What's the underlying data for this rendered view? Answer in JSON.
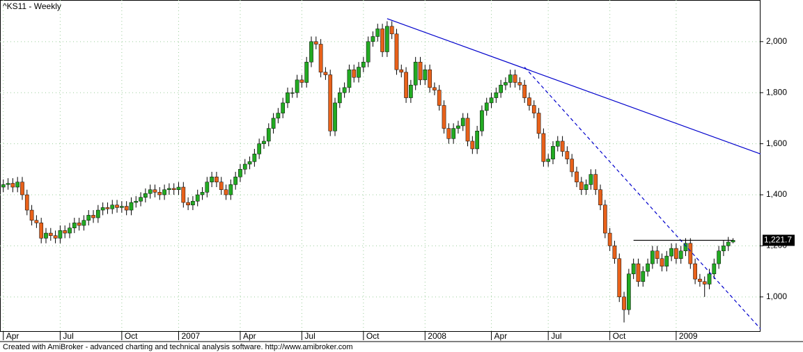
{
  "chart_data": {
    "type": "candlestick",
    "title": "^KS11 - Weekly",
    "footer": "Created with AmiBroker - advanced charting and technical analysis software. http://www.amibroker.com",
    "up_color": "#22aa22",
    "down_color": "#e8611a",
    "grid": true,
    "xlim": [
      -0.7,
      159.8
    ],
    "xticks": [
      {
        "value": 0,
        "label": "Apr"
      },
      {
        "value": 12,
        "label": "Jul"
      },
      {
        "value": 25,
        "label": "Oct"
      },
      {
        "value": 37,
        "label": "2007"
      },
      {
        "value": 50,
        "label": "Apr"
      },
      {
        "value": 63,
        "label": "Jul"
      },
      {
        "value": 76,
        "label": "Oct"
      },
      {
        "value": 89,
        "label": "2008"
      },
      {
        "value": 103,
        "label": "Apr"
      },
      {
        "value": 115,
        "label": "Jul"
      },
      {
        "value": 128,
        "label": "Oct"
      },
      {
        "value": 142,
        "label": "2009"
      }
    ],
    "ylim": [
      866,
      2163
    ],
    "yticks": [
      {
        "value": 1000,
        "label": "1,000"
      },
      {
        "value": 1200,
        "label": "1,200"
      },
      {
        "value": 1400,
        "label": "1,400"
      },
      {
        "value": 1600,
        "label": "1,600"
      },
      {
        "value": 1800,
        "label": "1,800"
      },
      {
        "value": 2000,
        "label": "2,000"
      }
    ],
    "last_value": {
      "value": 1221.7,
      "label": "1,221.7"
    },
    "trendlines": [
      {
        "x": [
          81,
          159.8
        ],
        "y": [
          2090,
          1560
        ],
        "color": "#0000cc",
        "dashed": false
      },
      {
        "x": [
          110,
          159.8
        ],
        "y": [
          1900,
          875
        ],
        "color": "#0000cc",
        "dashed": true
      },
      {
        "x": [
          133,
          154
        ],
        "y": [
          1221.7,
          1221.7
        ],
        "color": "#000000",
        "dashed": false
      }
    ],
    "open": [
      1430,
      1440,
      1445,
      1430,
      1450,
      1400,
      1340,
      1300,
      1290,
      1230,
      1250,
      1240,
      1230,
      1260,
      1250,
      1270,
      1290,
      1280,
      1300,
      1320,
      1310,
      1340,
      1350,
      1345,
      1360,
      1350,
      1355,
      1340,
      1370,
      1375,
      1390,
      1405,
      1420,
      1410,
      1400,
      1420,
      1425,
      1420,
      1430,
      1370,
      1360,
      1375,
      1400,
      1410,
      1450,
      1470,
      1450,
      1420,
      1400,
      1440,
      1470,
      1500,
      1520,
      1530,
      1560,
      1600,
      1610,
      1660,
      1700,
      1720,
      1760,
      1800,
      1800,
      1850,
      1840,
      1920,
      2000,
      1990,
      1880,
      1870,
      1650,
      1760,
      1800,
      1820,
      1890,
      1860,
      1900,
      1920,
      2000,
      2020,
      2050,
      1960,
      2060,
      2030,
      1890,
      1880,
      1780,
      1830,
      1920,
      1850,
      1890,
      1820,
      1810,
      1750,
      1660,
      1620,
      1660,
      1670,
      1700,
      1610,
      1580,
      1650,
      1730,
      1760,
      1780,
      1800,
      1830,
      1840,
      1870,
      1840,
      1830,
      1780,
      1750,
      1720,
      1640,
      1530,
      1540,
      1590,
      1610,
      1570,
      1540,
      1490,
      1450,
      1420,
      1440,
      1480,
      1420,
      1360,
      1250,
      1200,
      1150,
      1000,
      950,
      1090,
      1130,
      1060,
      1100,
      1130,
      1180,
      1150,
      1120,
      1160,
      1190,
      1150,
      1180,
      1210,
      1130,
      1070,
      1060,
      1050,
      1090,
      1130,
      1180,
      1200,
      1215
    ],
    "high": [
      1460,
      1465,
      1465,
      1470,
      1470,
      1420,
      1360,
      1320,
      1310,
      1270,
      1270,
      1260,
      1280,
      1280,
      1290,
      1310,
      1310,
      1320,
      1340,
      1340,
      1360,
      1370,
      1370,
      1380,
      1380,
      1375,
      1375,
      1390,
      1395,
      1410,
      1425,
      1440,
      1440,
      1430,
      1440,
      1445,
      1445,
      1450,
      1450,
      1390,
      1395,
      1420,
      1430,
      1470,
      1490,
      1490,
      1470,
      1440,
      1460,
      1490,
      1520,
      1540,
      1550,
      1580,
      1620,
      1630,
      1680,
      1720,
      1740,
      1780,
      1820,
      1820,
      1870,
      1870,
      1940,
      2020,
      2020,
      2010,
      1900,
      1890,
      1780,
      1820,
      1840,
      1910,
      1910,
      1920,
      1940,
      2020,
      2040,
      2070,
      2070,
      2080,
      2080,
      2050,
      1910,
      1900,
      1850,
      1940,
      1940,
      1910,
      1910,
      1840,
      1830,
      1770,
      1680,
      1680,
      1690,
      1720,
      1720,
      1630,
      1670,
      1750,
      1780,
      1800,
      1820,
      1850,
      1860,
      1890,
      1890,
      1860,
      1850,
      1800,
      1770,
      1740,
      1660,
      1560,
      1610,
      1630,
      1630,
      1590,
      1560,
      1510,
      1470,
      1460,
      1500,
      1500,
      1440,
      1380,
      1270,
      1220,
      1170,
      1020,
      1110,
      1150,
      1150,
      1120,
      1150,
      1200,
      1200,
      1170,
      1180,
      1210,
      1210,
      1200,
      1230,
      1230,
      1150,
      1090,
      1080,
      1110,
      1150,
      1200,
      1220,
      1235,
      1230
    ],
    "low": [
      1410,
      1420,
      1410,
      1410,
      1380,
      1320,
      1280,
      1270,
      1210,
      1210,
      1220,
      1210,
      1210,
      1230,
      1230,
      1250,
      1260,
      1260,
      1280,
      1290,
      1290,
      1320,
      1325,
      1325,
      1330,
      1330,
      1320,
      1320,
      1350,
      1355,
      1370,
      1385,
      1390,
      1380,
      1380,
      1400,
      1400,
      1400,
      1350,
      1340,
      1340,
      1355,
      1380,
      1390,
      1430,
      1430,
      1400,
      1380,
      1380,
      1420,
      1450,
      1480,
      1500,
      1510,
      1540,
      1580,
      1590,
      1640,
      1680,
      1700,
      1740,
      1780,
      1780,
      1820,
      1820,
      1900,
      1970,
      1860,
      1850,
      1630,
      1630,
      1740,
      1780,
      1800,
      1840,
      1840,
      1880,
      1900,
      1980,
      2000,
      1940,
      1940,
      2010,
      1870,
      1860,
      1760,
      1760,
      1810,
      1830,
      1830,
      1800,
      1790,
      1730,
      1640,
      1600,
      1600,
      1640,
      1650,
      1590,
      1560,
      1560,
      1630,
      1710,
      1740,
      1760,
      1780,
      1810,
      1820,
      1820,
      1810,
      1760,
      1730,
      1700,
      1620,
      1510,
      1510,
      1520,
      1570,
      1550,
      1520,
      1470,
      1430,
      1400,
      1400,
      1420,
      1400,
      1340,
      1230,
      1180,
      1130,
      980,
      900,
      930,
      1070,
      1040,
      1040,
      1080,
      1110,
      1130,
      1100,
      1100,
      1140,
      1130,
      1130,
      1160,
      1110,
      1050,
      1040,
      1000,
      1030,
      1070,
      1110,
      1160,
      1180,
      1210
    ],
    "close": [
      1440,
      1445,
      1430,
      1450,
      1400,
      1340,
      1300,
      1290,
      1230,
      1250,
      1240,
      1230,
      1260,
      1250,
      1270,
      1290,
      1280,
      1300,
      1320,
      1310,
      1340,
      1350,
      1345,
      1360,
      1350,
      1355,
      1340,
      1370,
      1375,
      1390,
      1405,
      1420,
      1410,
      1400,
      1420,
      1425,
      1420,
      1430,
      1370,
      1360,
      1375,
      1400,
      1410,
      1450,
      1470,
      1450,
      1420,
      1400,
      1440,
      1470,
      1500,
      1520,
      1530,
      1560,
      1600,
      1610,
      1660,
      1700,
      1720,
      1760,
      1800,
      1800,
      1850,
      1840,
      1920,
      2000,
      1990,
      1880,
      1870,
      1650,
      1760,
      1800,
      1820,
      1890,
      1860,
      1900,
      1920,
      2000,
      2020,
      2050,
      1960,
      2060,
      2030,
      1890,
      1880,
      1780,
      1830,
      1920,
      1850,
      1890,
      1820,
      1810,
      1750,
      1660,
      1620,
      1660,
      1670,
      1700,
      1610,
      1580,
      1650,
      1730,
      1760,
      1780,
      1800,
      1830,
      1840,
      1870,
      1840,
      1830,
      1780,
      1750,
      1720,
      1640,
      1530,
      1540,
      1590,
      1610,
      1570,
      1540,
      1490,
      1450,
      1420,
      1440,
      1480,
      1420,
      1360,
      1250,
      1200,
      1150,
      1000,
      950,
      1090,
      1130,
      1060,
      1100,
      1130,
      1180,
      1150,
      1120,
      1160,
      1190,
      1150,
      1180,
      1210,
      1130,
      1070,
      1060,
      1050,
      1090,
      1130,
      1180,
      1200,
      1215,
      1222
    ]
  }
}
